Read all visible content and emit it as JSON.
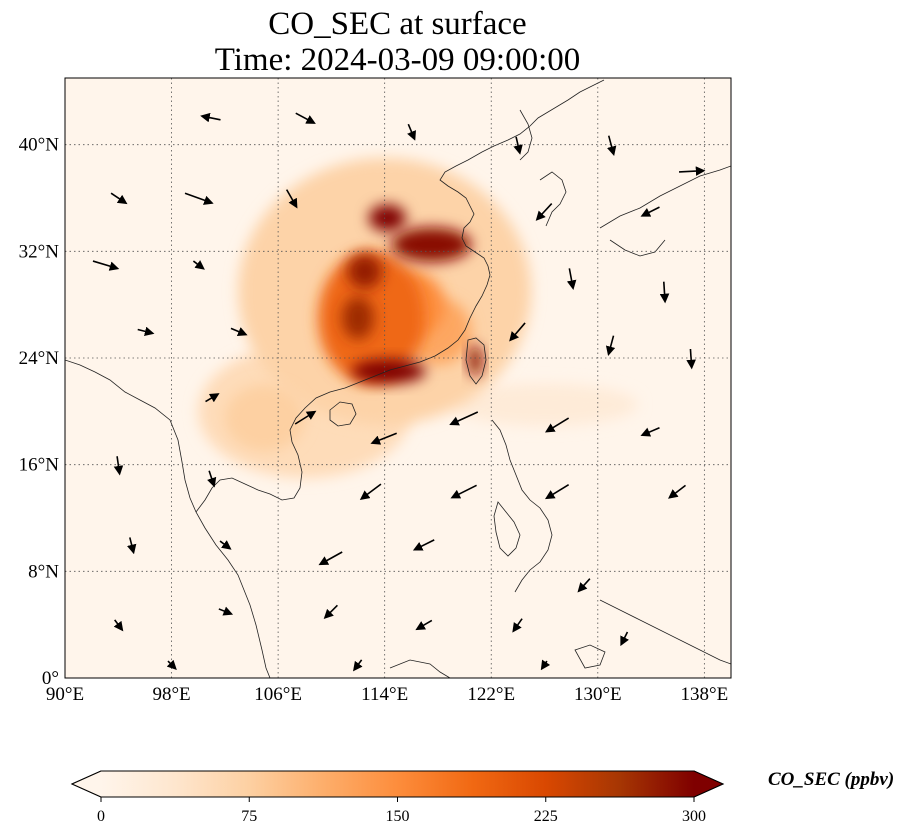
{
  "title": {
    "line1": "CO_SEC at surface",
    "line2": "Time: 2024-03-09 09:00:00"
  },
  "map": {
    "lon_range": [
      90,
      140
    ],
    "lat_range": [
      0,
      45
    ],
    "lon_ticks": [
      90,
      98,
      106,
      114,
      122,
      130,
      138
    ],
    "lon_tick_labels": [
      "90°E",
      "98°E",
      "106°E",
      "114°E",
      "122°E",
      "130°E",
      "138°E"
    ],
    "lat_ticks": [
      0,
      8,
      16,
      24,
      32,
      40
    ],
    "lat_tick_labels": [
      "0°",
      "8°N",
      "16°N",
      "24°N",
      "32°N",
      "40°N"
    ],
    "gridlines": true,
    "grid_style": "dotted"
  },
  "colorbar": {
    "label": "CO_SEC (ppbv)",
    "min": 0,
    "max": 300,
    "ticks": [
      0,
      75,
      150,
      225,
      300
    ],
    "tick_labels": [
      "0",
      "75",
      "150",
      "225",
      "300"
    ],
    "extend": "both",
    "colormap": [
      "#fff5eb",
      "#fee6ce",
      "#fdd0a2",
      "#fdae6b",
      "#fd8d3c",
      "#f16913",
      "#d94801",
      "#a63603",
      "#7f0000"
    ]
  },
  "field": {
    "blobs": [
      {
        "lon": 114,
        "lat": 29,
        "rlon": 11,
        "rlat": 10,
        "v": 70
      },
      {
        "lon": 108,
        "lat": 20,
        "rlon": 8,
        "rlat": 5,
        "v": 55
      },
      {
        "lon": 113,
        "lat": 27,
        "rlon": 4,
        "rlat": 5,
        "v": 190
      },
      {
        "lon": 117.5,
        "lat": 32.5,
        "rlon": 3,
        "rlat": 1.3,
        "v": 290
      },
      {
        "lon": 114.2,
        "lat": 34.5,
        "rlon": 1.4,
        "rlat": 1.0,
        "v": 300
      },
      {
        "lon": 112.5,
        "lat": 30.5,
        "rlon": 1.3,
        "rlat": 1.3,
        "v": 280
      },
      {
        "lon": 112,
        "lat": 27,
        "rlon": 1.2,
        "rlat": 1.6,
        "v": 270
      },
      {
        "lon": 114.3,
        "lat": 23.0,
        "rlon": 2.8,
        "rlat": 0.9,
        "v": 300
      },
      {
        "lon": 120.8,
        "lat": 23.8,
        "rlon": 0.5,
        "rlat": 1.2,
        "v": 290
      },
      {
        "lon": 116,
        "lat": 28,
        "rlon": 2.5,
        "rlat": 2.5,
        "v": 150
      },
      {
        "lon": 118,
        "lat": 26,
        "rlon": 2.5,
        "rlat": 2.5,
        "v": 120
      },
      {
        "lon": 105,
        "lat": 19.5,
        "rlon": 3,
        "rlat": 2.5,
        "v": 75
      },
      {
        "lon": 126,
        "lat": 20.5,
        "rlon": 7,
        "rlat": 1.6,
        "v": 25
      }
    ]
  },
  "wind_vectors": [
    {
      "lon": 101,
      "lat": 42,
      "u": -1.5,
      "v": 0.3
    },
    {
      "lon": 108,
      "lat": 42,
      "u": 1.5,
      "v": -0.8
    },
    {
      "lon": 116,
      "lat": 41,
      "u": 0.5,
      "v": -1.2
    },
    {
      "lon": 124,
      "lat": 40,
      "u": 0.3,
      "v": -1.3
    },
    {
      "lon": 131,
      "lat": 40,
      "u": 0.4,
      "v": -1.5
    },
    {
      "lon": 137,
      "lat": 38,
      "u": 2.0,
      "v": 0.1
    },
    {
      "lon": 94,
      "lat": 36,
      "u": 1.2,
      "v": -0.8
    },
    {
      "lon": 100,
      "lat": 36,
      "u": 2.2,
      "v": -0.8
    },
    {
      "lon": 107,
      "lat": 36,
      "u": 0.8,
      "v": -1.4
    },
    {
      "lon": 126,
      "lat": 35,
      "u": -1.2,
      "v": -1.3
    },
    {
      "lon": 134,
      "lat": 35,
      "u": -1.4,
      "v": -0.7
    },
    {
      "lon": 93,
      "lat": 31,
      "u": 2.0,
      "v": -0.6
    },
    {
      "lon": 100,
      "lat": 31,
      "u": 0.8,
      "v": -0.6
    },
    {
      "lon": 128,
      "lat": 30,
      "u": 0.3,
      "v": -1.6
    },
    {
      "lon": 135,
      "lat": 29,
      "u": 0.1,
      "v": -1.6
    },
    {
      "lon": 96,
      "lat": 26,
      "u": 1.2,
      "v": -0.3
    },
    {
      "lon": 103,
      "lat": 26,
      "u": 1.2,
      "v": -0.5
    },
    {
      "lon": 124,
      "lat": 26,
      "u": -1.2,
      "v": -1.4
    },
    {
      "lon": 131,
      "lat": 25,
      "u": -0.4,
      "v": -1.5
    },
    {
      "lon": 137,
      "lat": 24,
      "u": 0.1,
      "v": -1.5
    },
    {
      "lon": 101,
      "lat": 21,
      "u": 1.0,
      "v": 0.6
    },
    {
      "lon": 108,
      "lat": 19.5,
      "u": 1.6,
      "v": 1.0
    },
    {
      "lon": 114,
      "lat": 18,
      "u": -2.0,
      "v": -0.8
    },
    {
      "lon": 120,
      "lat": 19.5,
      "u": -2.2,
      "v": -1.0
    },
    {
      "lon": 127,
      "lat": 19,
      "u": -1.8,
      "v": -1.1
    },
    {
      "lon": 134,
      "lat": 18.5,
      "u": -1.4,
      "v": -0.6
    },
    {
      "lon": 94,
      "lat": 16,
      "u": 0.2,
      "v": -1.4
    },
    {
      "lon": 101,
      "lat": 15,
      "u": 0.4,
      "v": -1.2
    },
    {
      "lon": 113,
      "lat": 14,
      "u": -1.6,
      "v": -1.2
    },
    {
      "lon": 120,
      "lat": 14,
      "u": -2.0,
      "v": -1.0
    },
    {
      "lon": 127,
      "lat": 14,
      "u": -1.8,
      "v": -1.1
    },
    {
      "lon": 136,
      "lat": 14,
      "u": -1.3,
      "v": -1.0
    },
    {
      "lon": 95,
      "lat": 10,
      "u": 0.3,
      "v": -1.2
    },
    {
      "lon": 102,
      "lat": 10,
      "u": 0.8,
      "v": -0.6
    },
    {
      "lon": 110,
      "lat": 9,
      "u": -1.8,
      "v": -1.0
    },
    {
      "lon": 117,
      "lat": 10,
      "u": -1.6,
      "v": -0.8
    },
    {
      "lon": 129,
      "lat": 7,
      "u": -0.9,
      "v": -1.0
    },
    {
      "lon": 94,
      "lat": 4,
      "u": 0.6,
      "v": -0.8
    },
    {
      "lon": 102,
      "lat": 5,
      "u": 1.0,
      "v": -0.4
    },
    {
      "lon": 110,
      "lat": 5,
      "u": -1.0,
      "v": -1.0
    },
    {
      "lon": 117,
      "lat": 4,
      "u": -1.2,
      "v": -0.7
    },
    {
      "lon": 124,
      "lat": 4,
      "u": -0.7,
      "v": -1.0
    },
    {
      "lon": 132,
      "lat": 3,
      "u": -0.5,
      "v": -1.0
    },
    {
      "lon": 98,
      "lat": 1,
      "u": 0.6,
      "v": -0.6
    },
    {
      "lon": 112,
      "lat": 1,
      "u": -0.6,
      "v": -0.8
    },
    {
      "lon": 126,
      "lat": 1,
      "u": -0.4,
      "v": -0.6
    }
  ]
}
